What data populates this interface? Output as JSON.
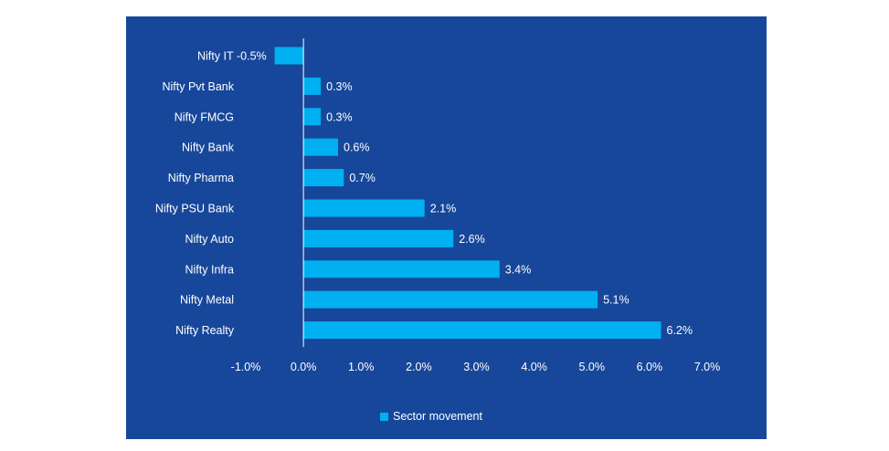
{
  "colors": {
    "background": "#17479a",
    "bar": "#00b0f0",
    "axis": "#ffffff",
    "text": "#ffffff"
  },
  "chart_data": {
    "type": "bar",
    "orientation": "horizontal",
    "categories": [
      "Nifty IT",
      "Nifty Pvt Bank",
      "Nifty FMCG",
      "Nifty Bank",
      "Nifty Pharma",
      "Nifty PSU Bank",
      "Nifty Auto",
      "Nifty Infra",
      "Nifty Metal",
      "Nifty Realty"
    ],
    "series": [
      {
        "name": "Sector movement",
        "values": [
          -0.5,
          0.3,
          0.3,
          0.6,
          0.7,
          2.1,
          2.6,
          3.4,
          5.1,
          6.2
        ],
        "labels": [
          "-0.5%",
          "0.3%",
          "0.3%",
          "0.6%",
          "0.7%",
          "2.1%",
          "2.6%",
          "3.4%",
          "5.1%",
          "6.2%"
        ]
      }
    ],
    "xlim": [
      -1.0,
      7.0
    ],
    "xticks": [
      -1.0,
      0.0,
      1.0,
      2.0,
      3.0,
      4.0,
      5.0,
      6.0,
      7.0
    ],
    "xtick_labels": [
      "-1.0%",
      "0.0%",
      "1.0%",
      "2.0%",
      "3.0%",
      "4.0%",
      "5.0%",
      "6.0%",
      "7.0%"
    ],
    "title": "",
    "xlabel": "",
    "ylabel": "",
    "grid": false,
    "legend_position": "bottom"
  },
  "legend": {
    "label": "Sector movement"
  }
}
